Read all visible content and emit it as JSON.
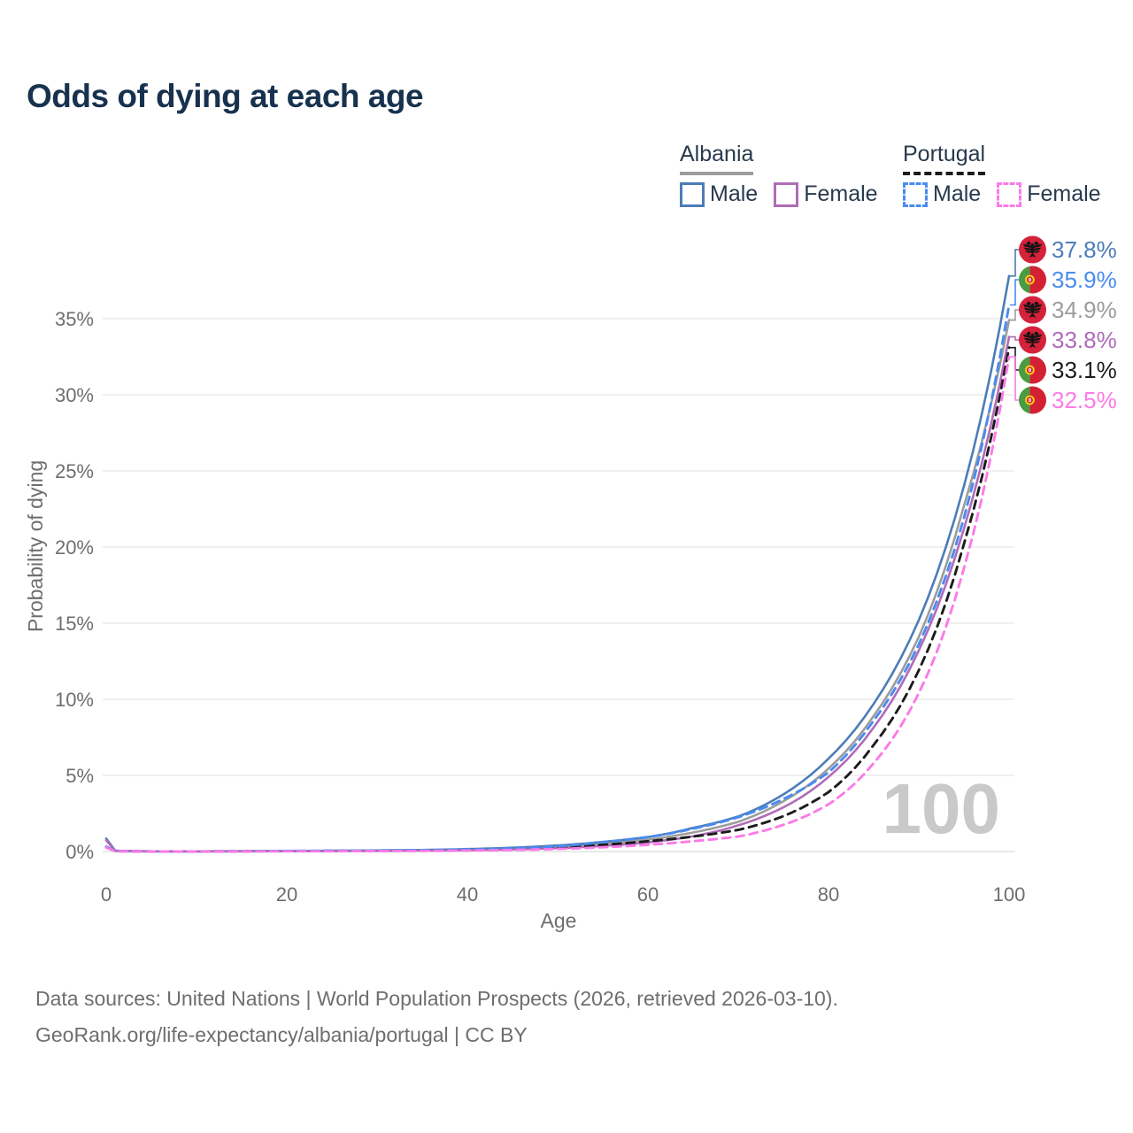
{
  "title": "Odds of dying at each age",
  "legend": {
    "groups": [
      {
        "label": "Albania",
        "line_style": "solid",
        "underline_color": "#9c9c9c",
        "items": [
          {
            "label": "Male",
            "color": "#4d7cb8",
            "dashed": false
          },
          {
            "label": "Female",
            "color": "#b06cb8",
            "dashed": false
          }
        ]
      },
      {
        "label": "Portugal",
        "line_style": "dashed",
        "underline_color": "#1c1c1c",
        "items": [
          {
            "label": "Male",
            "color": "#4a8bf0",
            "dashed": true
          },
          {
            "label": "Female",
            "color": "#fb7ae8",
            "dashed": true
          }
        ]
      }
    ]
  },
  "chart_data": {
    "type": "line",
    "title": "Odds of dying at each age",
    "xlabel": "Age",
    "ylabel": "Probability of dying",
    "xlim": [
      0,
      100
    ],
    "ylim": [
      0,
      38
    ],
    "x_ticks": [
      0,
      20,
      40,
      60,
      80,
      100
    ],
    "y_ticks": [
      "0%",
      "5%",
      "10%",
      "15%",
      "20%",
      "25%",
      "30%",
      "35%"
    ],
    "grid": "horizontal",
    "legend_position": "top-right",
    "watermark": "100",
    "ages": [
      0,
      1,
      5,
      10,
      15,
      20,
      25,
      30,
      35,
      40,
      45,
      50,
      55,
      60,
      65,
      70,
      75,
      80,
      85,
      90,
      95,
      100
    ],
    "series": [
      {
        "id": "albania-all",
        "name": "Albania",
        "color": "#9c9c9c",
        "dashed": false,
        "flag": "albania",
        "end_label": "34.9%",
        "values": [
          0.8,
          0.045,
          0.01,
          0.01,
          0.017,
          0.027,
          0.04,
          0.055,
          0.08,
          0.12,
          0.19,
          0.31,
          0.5,
          0.78,
          1.25,
          1.95,
          3.3,
          5.45,
          8.9,
          14.1,
          22.7,
          34.9
        ]
      },
      {
        "id": "albania-male",
        "name": "Albania Male",
        "color": "#4d7cb8",
        "dashed": false,
        "flag": "albania",
        "end_label": "37.8%",
        "values": [
          0.85,
          0.05,
          0.012,
          0.012,
          0.02,
          0.035,
          0.05,
          0.07,
          0.1,
          0.16,
          0.25,
          0.4,
          0.63,
          0.95,
          1.55,
          2.3,
          3.75,
          6.1,
          9.7,
          15.2,
          24.0,
          37.8
        ]
      },
      {
        "id": "albania-female",
        "name": "Albania Female",
        "color": "#b06cb8",
        "dashed": false,
        "flag": "albania",
        "end_label": "33.8%",
        "values": [
          0.74,
          0.04,
          0.009,
          0.008,
          0.013,
          0.018,
          0.025,
          0.04,
          0.06,
          0.09,
          0.14,
          0.22,
          0.37,
          0.6,
          1.0,
          1.72,
          2.9,
          4.9,
          8.15,
          13.2,
          21.2,
          33.8
        ]
      },
      {
        "id": "portugal-all",
        "name": "Portugal",
        "color": "#1c1c1c",
        "dashed": true,
        "flag": "portugal",
        "end_label": "33.1%",
        "values": [
          0.29,
          0.025,
          0.007,
          0.007,
          0.014,
          0.03,
          0.04,
          0.05,
          0.07,
          0.1,
          0.16,
          0.27,
          0.44,
          0.68,
          0.98,
          1.42,
          2.32,
          3.9,
          7.0,
          11.9,
          20.2,
          33.1
        ]
      },
      {
        "id": "portugal-male",
        "name": "Portugal Male",
        "color": "#4a8bf0",
        "dashed": true,
        "flag": "portugal",
        "end_label": "35.9%",
        "values": [
          0.32,
          0.03,
          0.008,
          0.008,
          0.018,
          0.04,
          0.055,
          0.07,
          0.09,
          0.13,
          0.2,
          0.35,
          0.62,
          0.95,
          1.5,
          2.25,
          3.45,
          5.2,
          8.6,
          13.6,
          21.9,
          35.9
        ]
      },
      {
        "id": "portugal-female",
        "name": "Portugal Female",
        "color": "#fb7ae8",
        "dashed": true,
        "flag": "portugal",
        "end_label": "32.5%",
        "values": [
          0.26,
          0.02,
          0.006,
          0.006,
          0.01,
          0.015,
          0.02,
          0.03,
          0.04,
          0.065,
          0.1,
          0.17,
          0.28,
          0.44,
          0.68,
          0.98,
          1.75,
          3.1,
          5.8,
          10.4,
          18.6,
          32.5
        ]
      }
    ]
  },
  "footer": {
    "line1": "Data sources: United Nations | World Population Prospects (2026, retrieved 2026-03-10).",
    "line2": "GeoRank.org/life-expectancy/albania/portugal | CC BY"
  }
}
